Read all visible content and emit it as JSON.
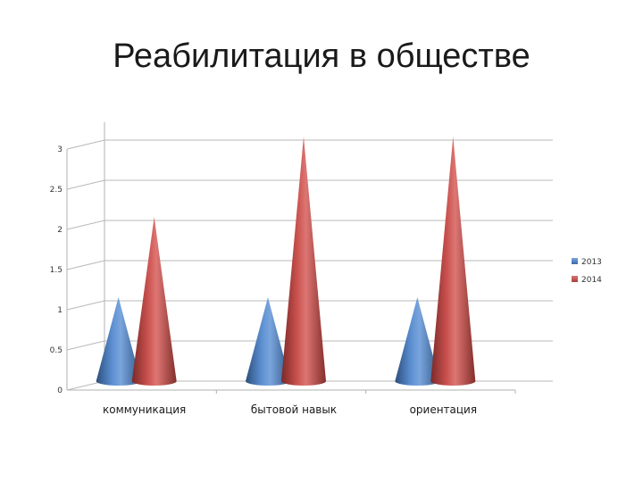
{
  "slide": {
    "title": "Реабилитация в обществе"
  },
  "chart_data": {
    "type": "bar",
    "shape": "3d-cone",
    "title": "",
    "xlabel": "",
    "ylabel": "",
    "categories": [
      "коммуникация",
      "бытовой навык",
      "ориентация"
    ],
    "series": [
      {
        "name": "2013",
        "values": [
          1,
          1,
          1
        ],
        "color": "#4f81bd"
      },
      {
        "name": "2014",
        "values": [
          2,
          3,
          3
        ],
        "color": "#c0504d"
      }
    ],
    "ylim": [
      0,
      3
    ],
    "yticks": [
      "0",
      "0.5",
      "1",
      "1.5",
      "2",
      "2.5",
      "3"
    ],
    "grid": true,
    "legend": "right"
  }
}
